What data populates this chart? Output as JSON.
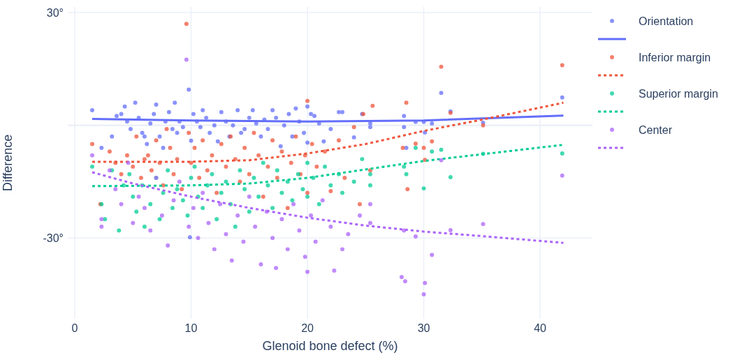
{
  "chart_data": {
    "type": "scatter",
    "xlabel": "Glenoid bone defect (%)",
    "ylabel": "Difference",
    "xlim": [
      -0.6,
      44.5
    ],
    "ylim": [
      -51.5,
      31.5
    ],
    "xticks": [
      0,
      10,
      20,
      30,
      40
    ],
    "yticks": [
      {
        "value": -30,
        "label": "-30°"
      },
      {
        "value": 30,
        "label": "30°"
      }
    ],
    "grid": true,
    "legend": "top right",
    "marker": "circle",
    "ref_lines": [
      {
        "axis": "y",
        "value": 0,
        "label": null
      }
    ],
    "series": [
      {
        "name": "Orientation",
        "color": "#636efa",
        "x": [
          1.5,
          2.3,
          3.2,
          3.6,
          4,
          4.3,
          4.5,
          4.8,
          5.2,
          5.5,
          5.8,
          6,
          6.2,
          6.5,
          6.8,
          7,
          7.3,
          7.6,
          7.8,
          8.1,
          8.4,
          8.6,
          8.8,
          9,
          9.3,
          9.8,
          9.9,
          10,
          10.2,
          10.5,
          10.8,
          11,
          11.3,
          11.6,
          12,
          12.3,
          12.6,
          13,
          13.3,
          13.6,
          14,
          14.3,
          14.6,
          15,
          15.3,
          15.6,
          16,
          16.3,
          16.6,
          17,
          17.3,
          17.7,
          18,
          18.4,
          18.7,
          19,
          19.3,
          19.7,
          20,
          20,
          20.3,
          20.6,
          21,
          21.4,
          22,
          22.7,
          23,
          24,
          24.7,
          25.4,
          25.4,
          28.3,
          28.3,
          28.5,
          29.3,
          30,
          30.1,
          30.7,
          31.5,
          32.3,
          35.1,
          41.9
        ],
        "values": [
          4,
          -6,
          -3,
          2.5,
          3,
          5,
          1,
          -1,
          6,
          2,
          -2,
          -3,
          -5,
          0.5,
          3,
          5.5,
          -3,
          -6,
          1,
          3.5,
          -1,
          6,
          -2,
          1,
          -0.5,
          9.5,
          -29.8,
          -4.1,
          3,
          1,
          -0.5,
          4,
          2,
          -2,
          0,
          -4.3,
          3.5,
          1,
          -3,
          0,
          4,
          -2,
          -1,
          2,
          4,
          0.5,
          -3,
          1.5,
          -1,
          4,
          2,
          -5.6,
          0,
          3,
          -3,
          4.5,
          1,
          -2,
          -4.6,
          5,
          3,
          2.5,
          0.5,
          -4.3,
          -1,
          3.5,
          3.5,
          -3.2,
          3,
          -0.5,
          0.5,
          -0.5,
          2.5,
          -6,
          0.9,
          0.9,
          -1.9,
          0.5,
          8.6,
          3.7,
          0.7,
          7.4
        ]
      },
      {
        "type": "line",
        "color": "#636efa",
        "line_style": "solid",
        "marker": "none",
        "x": [
          1.5,
          10,
          20,
          30,
          42
        ],
        "values": [
          1.7,
          1.3,
          1.0,
          1.3,
          2.6
        ]
      },
      {
        "name": "Inferior margin",
        "color": "#ef553b",
        "x": [
          1.5,
          2.2,
          3,
          3.5,
          4,
          4.5,
          5,
          5.3,
          5.7,
          6,
          6.3,
          6.6,
          7,
          7.3,
          7.6,
          7.9,
          8.2,
          8.5,
          8.8,
          9.2,
          9.6,
          9.8,
          10,
          10.3,
          10.7,
          11,
          11.4,
          11.8,
          12.2,
          12.6,
          13,
          13.4,
          13.8,
          14.2,
          14.6,
          15,
          15.4,
          15.8,
          16.2,
          16.6,
          17,
          17.4,
          17.8,
          18.3,
          18.6,
          19,
          19.4,
          19.8,
          20,
          20,
          20.4,
          20.8,
          21.5,
          22,
          22.7,
          23.2,
          24,
          24.5,
          24.8,
          25.6,
          25.4,
          28.2,
          28.5,
          28.6,
          29.3,
          30,
          30.1,
          30.7,
          31.5,
          32.3,
          35.1,
          41.9
        ],
        "values": [
          -5,
          -21,
          -7,
          -10,
          -13,
          -8,
          -11,
          -3,
          -14,
          -9,
          -8,
          -12,
          -4,
          -10,
          -16,
          -1,
          -6,
          -13,
          -9,
          -17,
          27,
          -2,
          -10,
          -6,
          -14,
          -4,
          -12,
          -8,
          -18,
          -5,
          -11,
          -3,
          -9,
          -15,
          -6,
          -13,
          -2,
          -8,
          -19,
          -11,
          -4,
          -14,
          -7,
          -22,
          -10,
          -3,
          -13,
          -8,
          6.5,
          -18,
          -5,
          -11,
          -7,
          -17.5,
          -4,
          -14,
          -0.5,
          -21,
          3,
          5.2,
          -12,
          -6,
          6,
          -17,
          -4.9,
          -6,
          -9.2,
          -4.3,
          15.6,
          3.3,
          0,
          16
        ]
      },
      {
        "type": "line",
        "color": "#ef553b",
        "line_style": "dotted",
        "marker": "none",
        "x": [
          1.5,
          10,
          15,
          20,
          25,
          30,
          35,
          42
        ],
        "values": [
          -9.7,
          -9.7,
          -9.3,
          -7.5,
          -5,
          -1.5,
          1.5,
          6
        ]
      },
      {
        "name": "Superior margin",
        "color": "#00cc96",
        "x": [
          1.5,
          2.3,
          2.6,
          3.2,
          3.8,
          4.2,
          4.7,
          5,
          5.3,
          5.8,
          6,
          6.5,
          7,
          7.3,
          7.6,
          8,
          8.4,
          8.8,
          9.3,
          9.7,
          10,
          10.3,
          10.6,
          11,
          11.4,
          11.8,
          12.2,
          12.6,
          13,
          13.4,
          13.8,
          14.2,
          14.6,
          15,
          15.4,
          15.8,
          16.2,
          16.6,
          17,
          17.4,
          17.8,
          18.3,
          18.7,
          19.2,
          19.6,
          20,
          20,
          20.5,
          21,
          21.5,
          22,
          22.7,
          23,
          24,
          24.7,
          25.4,
          25.4,
          28.3,
          28.5,
          29.3,
          30,
          30.7,
          31.5,
          32.3,
          35.1,
          41.9
        ],
        "values": [
          -11,
          -21,
          -25,
          -12,
          -28,
          -16,
          -13,
          -19,
          -23,
          -16,
          -27,
          -21,
          -14,
          -25,
          -18,
          -12,
          -22,
          -17,
          -20,
          -24,
          -14,
          -11,
          -19,
          -22,
          -16,
          -13,
          -25,
          -18,
          -15,
          -21,
          -27,
          -12,
          -17,
          -23,
          -14,
          -19,
          -10,
          -16,
          -22,
          -12,
          -18,
          -15,
          -20,
          -13,
          -17,
          -10,
          -19,
          -14,
          -21,
          -11,
          -16,
          -13,
          -18,
          -15,
          -9,
          -13,
          -16,
          -11,
          -13,
          -6,
          -16.8,
          -7,
          -6.5,
          -13.8,
          -7.6,
          -7.5
        ]
      },
      {
        "type": "line",
        "color": "#00cc96",
        "line_style": "dotted",
        "marker": "none",
        "x": [
          1.5,
          10,
          15,
          20,
          30,
          42
        ],
        "values": [
          -16.2,
          -16,
          -15.5,
          -14,
          -9.5,
          -5.2
        ]
      },
      {
        "name": "Center",
        "color": "#ab63fa",
        "x": [
          1.5,
          2.3,
          2.3,
          3,
          3.5,
          4,
          4.6,
          5,
          5.5,
          6,
          6.5,
          7,
          7.5,
          8,
          8.5,
          9,
          9.6,
          9.8,
          10.2,
          10.6,
          11,
          11.5,
          12,
          12.5,
          13,
          13.5,
          14,
          14.5,
          15,
          15.5,
          16,
          16.5,
          17,
          17.3,
          17.8,
          18.3,
          18.8,
          19.3,
          19.8,
          20,
          20.3,
          20.7,
          21.3,
          22,
          22.3,
          23,
          23.5,
          24.5,
          25.4,
          25.4,
          28.1,
          28.4,
          28.3,
          29.3,
          30,
          30.1,
          30.7,
          31.5,
          32.3,
          35.1,
          41.9
        ],
        "values": [
          -8,
          -25,
          -27,
          -12,
          -17,
          -21,
          -10,
          -26,
          -19,
          -22,
          -28,
          -14,
          -24,
          -32,
          -20,
          -15,
          17.5,
          -27,
          -22,
          -30,
          -18,
          -26,
          -33,
          -21,
          -29,
          -36,
          -24,
          -31,
          -19,
          -27,
          -37,
          -23,
          -30,
          -38,
          -25,
          -33,
          -21,
          -28,
          -35,
          -39,
          -24,
          -31,
          -20,
          -27,
          -38.7,
          -33,
          -29,
          -24,
          -21,
          -26,
          -40.4,
          -41.5,
          -28,
          -29.6,
          -45,
          -42,
          -34.5,
          -9.3,
          -27.9,
          -26.3,
          -13.4
        ]
      },
      {
        "type": "line",
        "color": "#ab63fa",
        "line_style": "dotted",
        "marker": "none",
        "x": [
          1.5,
          5,
          10,
          15,
          20,
          25,
          30,
          35,
          42
        ],
        "values": [
          -12.5,
          -15.5,
          -19,
          -22,
          -24.6,
          -26.7,
          -28.3,
          -29.5,
          -31.3
        ]
      }
    ]
  }
}
